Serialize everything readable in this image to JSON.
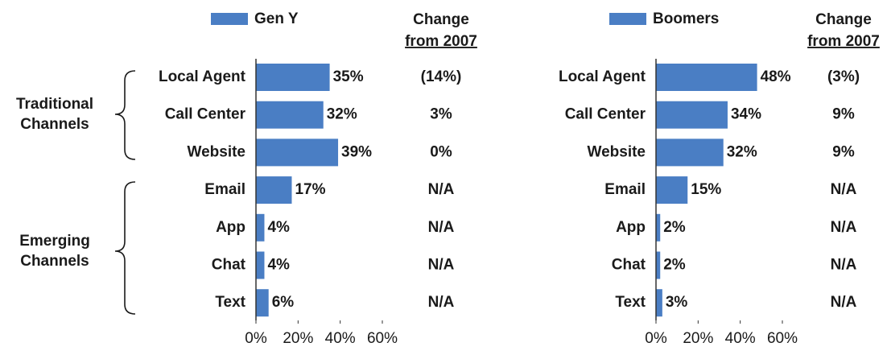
{
  "chart_data": [
    {
      "type": "bar",
      "orientation": "horizontal",
      "categories": [
        "Local Agent",
        "Call Center",
        "Website",
        "Email",
        "App",
        "Chat",
        "Text"
      ],
      "series": [
        {
          "name": "Gen Y",
          "color": "#4a7ec4",
          "values": [
            35,
            32,
            39,
            17,
            4,
            4,
            6
          ],
          "value_labels": [
            "35%",
            "32%",
            "39%",
            "17%",
            "4%",
            "4%",
            "6%"
          ]
        }
      ],
      "xlim": [
        0,
        60
      ],
      "xticks": [
        {
          "value": 0,
          "label": "0%"
        },
        {
          "value": 20,
          "label": "20%"
        },
        {
          "value": 40,
          "label": "40%"
        },
        {
          "value": 60,
          "label": "60%"
        }
      ],
      "change_header": [
        "Change",
        "from 2007"
      ],
      "change": [
        "(14%)",
        "3%",
        "0%",
        "N/A",
        "N/A",
        "N/A",
        "N/A"
      ],
      "groups": [
        "Traditional Channels",
        "Emerging Channels"
      ]
    },
    {
      "type": "bar",
      "orientation": "horizontal",
      "categories": [
        "Local Agent",
        "Call Center",
        "Website",
        "Email",
        "App",
        "Chat",
        "Text"
      ],
      "series": [
        {
          "name": "Boomers",
          "color": "#4a7ec4",
          "values": [
            48,
            34,
            32,
            15,
            2,
            2,
            3
          ],
          "value_labels": [
            "48%",
            "34%",
            "32%",
            "15%",
            "2%",
            "2%",
            "3%"
          ]
        }
      ],
      "xlim": [
        0,
        60
      ],
      "xticks": [
        {
          "value": 0,
          "label": "0%"
        },
        {
          "value": 20,
          "label": "20%"
        },
        {
          "value": 40,
          "label": "40%"
        },
        {
          "value": 60,
          "label": "60%"
        }
      ],
      "change_header": [
        "Change",
        "from 2007"
      ],
      "change": [
        "(3%)",
        "9%",
        "9%",
        "N/A",
        "N/A",
        "N/A",
        "N/A"
      ]
    }
  ]
}
